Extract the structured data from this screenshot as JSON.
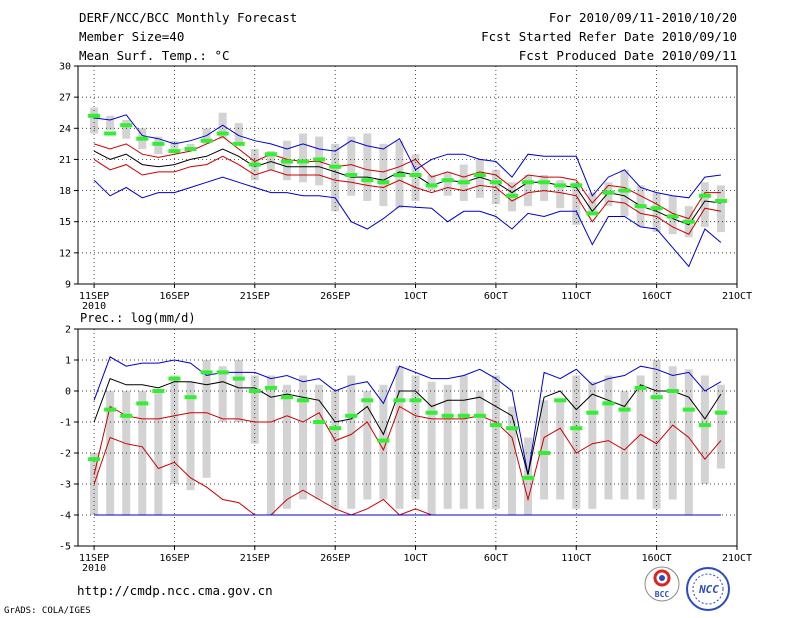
{
  "header": {
    "title": "DERF/NCC/BCC Monthly Forecast",
    "member_size": "Member Size=40",
    "variable": "Mean Surf. Temp.: °C",
    "period": "For 2010/09/11-2010/10/20",
    "started": "Fcst Started Refer Date 2010/09/10",
    "produced": "Fcst Produced Date 2010/09/11"
  },
  "footer": {
    "url": "http://cmdp.ncc.cma.gov.cn",
    "credit": "GrADS: COLA/IGES",
    "logo_bcc": "BCC",
    "logo_ncc": "NCC"
  },
  "colors": {
    "blue": "#0000cc",
    "red": "#cc0000",
    "black": "#000000",
    "green": "#33ee33",
    "bar": "#d3d3d3"
  },
  "chart_data": [
    {
      "type": "line",
      "title": "Mean Surf. Temp.: °C",
      "ylim": [
        9,
        30
      ],
      "yticks": [
        9,
        12,
        15,
        18,
        21,
        24,
        27,
        30
      ],
      "xticks": [
        {
          "day": 1,
          "label": "11SEP",
          "sub": "2010"
        },
        {
          "day": 6,
          "label": "16SEP"
        },
        {
          "day": 11,
          "label": "21SEP"
        },
        {
          "day": 16,
          "label": "26SEP"
        },
        {
          "day": 21,
          "label": "1OCT"
        },
        {
          "day": 26,
          "label": "6OCT"
        },
        {
          "day": 31,
          "label": "11OCT"
        },
        {
          "day": 36,
          "label": "16OCT"
        },
        {
          "day": 41,
          "label": "21OCT"
        }
      ],
      "days": [
        1,
        2,
        3,
        4,
        5,
        6,
        7,
        8,
        9,
        10,
        11,
        12,
        13,
        14,
        15,
        16,
        17,
        18,
        19,
        20,
        21,
        22,
        23,
        24,
        25,
        26,
        27,
        28,
        29,
        30,
        31,
        32,
        33,
        34,
        35,
        36,
        37,
        38,
        39,
        40
      ],
      "bar_low": [
        23.5,
        23.8,
        23.0,
        22.0,
        21.5,
        22.0,
        21.8,
        22.5,
        23.0,
        22.5,
        19.0,
        20.0,
        19.0,
        18.8,
        18.5,
        16.0,
        17.5,
        17.0,
        16.5,
        16.3,
        17.0,
        18.0,
        17.5,
        17.0,
        17.3,
        16.7,
        16.0,
        16.5,
        17.0,
        16.3,
        14.7,
        16.0,
        16.5,
        15.5,
        14.5,
        14.0,
        13.8,
        13.5,
        14.5,
        14.0
      ],
      "bar_high": [
        26.0,
        25.2,
        24.8,
        24.0,
        23.2,
        22.8,
        22.5,
        24.0,
        25.5,
        24.5,
        22.0,
        21.8,
        22.8,
        23.5,
        23.2,
        22.5,
        23.2,
        23.5,
        22.5,
        22.8,
        21.5,
        19.5,
        19.8,
        20.5,
        21.0,
        20.0,
        18.8,
        19.5,
        19.5,
        19.0,
        18.8,
        17.8,
        18.8,
        20.0,
        18.5,
        17.8,
        17.5,
        16.5,
        18.8,
        18.5
      ],
      "series": [
        {
          "name": "max",
          "color": "#0000cc",
          "values": [
            19.0,
            17.5,
            18.3,
            17.3,
            17.8,
            17.8,
            18.3,
            18.8,
            19.3,
            18.8,
            18.3,
            17.8,
            17.8,
            17.5,
            17.5,
            17.3,
            15.0,
            14.3,
            15.3,
            16.5,
            16.4,
            16.3,
            15.0,
            16.0,
            16.0,
            15.5,
            14.3,
            15.8,
            15.5,
            16.0,
            16.0,
            12.8,
            15.5,
            15.5,
            14.5,
            14.3,
            12.5,
            10.7,
            14.3,
            13.0
          ]
        },
        {
          "name": "upper",
          "color": "#cc0000",
          "values": [
            22.5,
            22.0,
            22.5,
            21.5,
            21.2,
            21.5,
            21.8,
            22.5,
            23.2,
            22.0,
            20.8,
            21.5,
            21.0,
            20.8,
            20.8,
            20.3,
            20.5,
            20.0,
            19.8,
            20.3,
            21.0,
            19.3,
            19.8,
            19.3,
            19.8,
            19.5,
            18.3,
            19.5,
            19.3,
            19.3,
            19.0,
            16.8,
            18.5,
            18.3,
            17.5,
            16.7,
            15.8,
            15.3,
            17.8,
            17.8
          ]
        },
        {
          "name": "mean",
          "color": "#000000",
          "values": [
            21.8,
            21.0,
            21.5,
            20.5,
            20.3,
            20.5,
            21.0,
            21.3,
            22.0,
            21.3,
            20.3,
            20.8,
            20.3,
            20.3,
            20.3,
            19.8,
            19.3,
            19.3,
            19.0,
            19.8,
            19.5,
            18.5,
            19.0,
            18.8,
            19.3,
            18.8,
            17.8,
            18.8,
            18.8,
            18.5,
            18.3,
            16.0,
            17.8,
            17.5,
            16.5,
            16.0,
            15.3,
            14.7,
            17.0,
            16.8
          ]
        },
        {
          "name": "lower",
          "color": "#cc0000",
          "values": [
            21.0,
            20.0,
            20.5,
            19.5,
            19.8,
            19.8,
            20.3,
            20.5,
            21.3,
            20.5,
            19.5,
            20.0,
            19.5,
            19.5,
            19.5,
            19.0,
            18.8,
            18.5,
            18.3,
            19.0,
            18.3,
            17.8,
            18.3,
            18.0,
            18.5,
            18.3,
            17.0,
            17.8,
            18.0,
            17.8,
            17.5,
            15.0,
            17.0,
            16.8,
            15.8,
            15.5,
            14.5,
            13.8,
            16.3,
            16.0
          ]
        },
        {
          "name": "min",
          "color": "#0000cc",
          "values": [
            25.0,
            24.8,
            25.3,
            23.3,
            23.0,
            22.5,
            22.8,
            23.3,
            24.3,
            23.3,
            22.8,
            22.5,
            22.0,
            22.5,
            22.0,
            21.8,
            22.8,
            22.3,
            22.0,
            23.0,
            20.0,
            21.0,
            21.5,
            21.5,
            21.0,
            20.8,
            19.3,
            21.5,
            21.3,
            21.3,
            21.3,
            17.5,
            19.3,
            20.0,
            18.3,
            17.8,
            17.5,
            17.3,
            19.3,
            19.5
          ]
        }
      ],
      "markers": [
        25.2,
        23.5,
        24.3,
        23.0,
        22.5,
        21.8,
        22.0,
        22.8,
        23.5,
        22.5,
        20.5,
        21.5,
        20.8,
        20.8,
        21.0,
        20.3,
        19.5,
        19.0,
        18.8,
        19.5,
        19.5,
        18.5,
        19.0,
        18.8,
        19.5,
        18.8,
        17.5,
        18.8,
        18.8,
        18.5,
        18.5,
        15.8,
        17.8,
        18.0,
        16.5,
        16.3,
        15.5,
        15.0,
        17.5,
        17.0
      ]
    },
    {
      "type": "line",
      "title": "Prec.: log(mm/d)",
      "ylim": [
        -5,
        2
      ],
      "yticks": [
        -5,
        -4,
        -3,
        -2,
        -1,
        0,
        1,
        2
      ],
      "xticks": [
        {
          "day": 1,
          "label": "11SEP",
          "sub": "2010"
        },
        {
          "day": 6,
          "label": "16SEP"
        },
        {
          "day": 11,
          "label": "21SEP"
        },
        {
          "day": 16,
          "label": "26SEP"
        },
        {
          "day": 21,
          "label": "1OCT"
        },
        {
          "day": 26,
          "label": "6OCT"
        },
        {
          "day": 31,
          "label": "11OCT"
        },
        {
          "day": 36,
          "label": "16OCT"
        },
        {
          "day": 41,
          "label": "21OCT"
        }
      ],
      "days": [
        1,
        2,
        3,
        4,
        5,
        6,
        7,
        8,
        9,
        10,
        11,
        12,
        13,
        14,
        15,
        16,
        17,
        18,
        19,
        20,
        21,
        22,
        23,
        24,
        25,
        26,
        27,
        28,
        29,
        30,
        31,
        32,
        33,
        34,
        35,
        36,
        37,
        38,
        39,
        40
      ],
      "bar_low": [
        -4.0,
        -4.0,
        -4.0,
        -4.0,
        -4.0,
        -3.0,
        -3.2,
        -2.8,
        -1.0,
        -1.0,
        -1.7,
        -4.0,
        -3.8,
        -3.5,
        -3.5,
        -3.8,
        -3.8,
        -3.5,
        -3.5,
        -3.8,
        -3.5,
        -4.0,
        -3.8,
        -3.8,
        -3.8,
        -3.8,
        -4.0,
        -4.0,
        -3.5,
        -3.5,
        -3.8,
        -3.8,
        -3.5,
        -3.5,
        -3.5,
        -3.8,
        -3.5,
        -4.0,
        -3.0,
        -2.5
      ],
      "bar_high": [
        -2.0,
        0.0,
        0.0,
        0.0,
        0.0,
        0.5,
        0.3,
        1.0,
        0.8,
        1.0,
        0.5,
        0.5,
        0.2,
        0.5,
        0.2,
        0.0,
        0.5,
        0.0,
        0.2,
        0.8,
        0.5,
        0.3,
        0.2,
        0.5,
        0.0,
        0.5,
        -0.5,
        -1.5,
        -0.3,
        -0.3,
        0.5,
        0.3,
        0.5,
        0.0,
        0.5,
        1.0,
        0.8,
        0.7,
        0.5,
        0.2
      ],
      "series": [
        {
          "name": "max",
          "color": "#0000cc",
          "values": [
            -0.3,
            1.1,
            0.8,
            0.9,
            0.9,
            1.0,
            0.9,
            0.5,
            0.6,
            0.6,
            0.6,
            0.4,
            0.5,
            0.3,
            0.4,
            0.0,
            0.2,
            0.3,
            -0.4,
            0.8,
            0.6,
            0.4,
            0.4,
            0.5,
            0.7,
            0.4,
            0.0,
            -2.7,
            0.6,
            0.4,
            0.7,
            0.2,
            0.4,
            0.5,
            0.8,
            0.7,
            0.5,
            0.6,
            0.0,
            0.3
          ]
        },
        {
          "name": "upper",
          "color": "#cc0000",
          "values": [
            -3.0,
            -1.5,
            -1.7,
            -1.8,
            -2.5,
            -2.3,
            -2.8,
            -3.1,
            -3.5,
            -3.6,
            -4.0,
            -4.0,
            -3.5,
            -3.2,
            -3.5,
            -3.8,
            -4.0,
            -3.8,
            -3.5,
            -4.0,
            -3.8,
            -4.0,
            -4.0,
            -4.0,
            -4.0,
            -4.0,
            -4.0,
            -4.0,
            -4.0,
            -4.0,
            -4.0,
            -4.0,
            -4.0,
            -4.0,
            -4.0,
            -4.0,
            -4.0,
            -4.0,
            -4.0,
            -4.0
          ]
        },
        {
          "name": "mean",
          "color": "#000000",
          "values": [
            -1.0,
            0.4,
            0.2,
            0.2,
            0.1,
            0.3,
            0.3,
            0.2,
            0.3,
            0.1,
            0.1,
            -0.2,
            -0.1,
            -0.2,
            -0.3,
            -1.0,
            -0.9,
            -0.5,
            -1.4,
            0.0,
            0.0,
            -0.5,
            -0.3,
            -0.3,
            -0.2,
            -0.5,
            -0.8,
            -2.7,
            -0.2,
            0.0,
            -0.6,
            -0.1,
            -0.3,
            -0.5,
            0.2,
            0.0,
            0.0,
            -0.2,
            -0.9,
            -0.1
          ]
        },
        {
          "name": "lower",
          "color": "#cc0000",
          "values": [
            -2.7,
            -0.5,
            -0.8,
            -0.9,
            -0.9,
            -0.8,
            -0.7,
            -0.7,
            -0.9,
            -0.9,
            -1.0,
            -1.0,
            -0.8,
            -1.0,
            -0.7,
            -1.6,
            -1.4,
            -1.0,
            -1.9,
            -0.5,
            -0.8,
            -0.9,
            -0.9,
            -0.9,
            -0.8,
            -1.0,
            -1.5,
            -3.5,
            -1.5,
            -1.2,
            -2.0,
            -1.7,
            -1.6,
            -1.9,
            -1.4,
            -1.7,
            -1.1,
            -1.5,
            -2.2,
            -1.6
          ]
        },
        {
          "name": "min",
          "color": "#0000cc",
          "values": [
            -4.0,
            -4.0,
            -4.0,
            -4.0,
            -4.0,
            -4.0,
            -4.0,
            -4.0,
            -4.0,
            -4.0,
            -4.0,
            -4.0,
            -4.0,
            -4.0,
            -4.0,
            -4.0,
            -4.0,
            -4.0,
            -4.0,
            -4.0,
            -4.0,
            -4.0,
            -4.0,
            -4.0,
            -4.0,
            -4.0,
            -4.0,
            -4.0,
            -4.0,
            -4.0,
            -4.0,
            -4.0,
            -4.0,
            -4.0,
            -4.0,
            -4.0,
            -4.0,
            -4.0,
            -4.0,
            -4.0
          ]
        }
      ],
      "markers": [
        -2.2,
        -0.6,
        -0.8,
        -0.4,
        0.0,
        0.4,
        -0.2,
        0.6,
        0.6,
        0.4,
        0.0,
        0.1,
        -0.2,
        -0.3,
        -1.0,
        -1.2,
        -0.8,
        -0.3,
        -1.6,
        -0.3,
        -0.3,
        -0.7,
        -0.8,
        -0.8,
        -0.8,
        -1.1,
        -1.2,
        -2.8,
        -2.0,
        -0.3,
        -1.2,
        -0.7,
        -0.4,
        -0.6,
        0.1,
        -0.2,
        0.0,
        -0.6,
        -1.1,
        -0.7
      ]
    }
  ]
}
